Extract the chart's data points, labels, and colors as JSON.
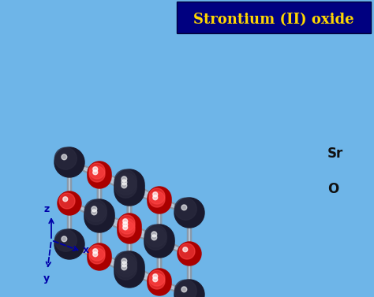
{
  "title": "Strontium (II) oxide",
  "title_bg": "#000080",
  "title_color": "#FFD700",
  "bg_color": "#6EB5E8",
  "sr_color_dark": "#1a1a2e",
  "sr_color_light": "#555577",
  "o_color_dark": "#AA0000",
  "o_color_light": "#FF4444",
  "bond_color": "#8899AA",
  "bond_color2": "#BBCCDD",
  "sr_label": "Sr",
  "o_label": "O",
  "axis_label_color": "#0000AA",
  "figsize": [
    4.74,
    3.77
  ],
  "dpi": 100,
  "title_fontsize": 13,
  "label_fontsize": 12,
  "axis_fontsize": 9
}
